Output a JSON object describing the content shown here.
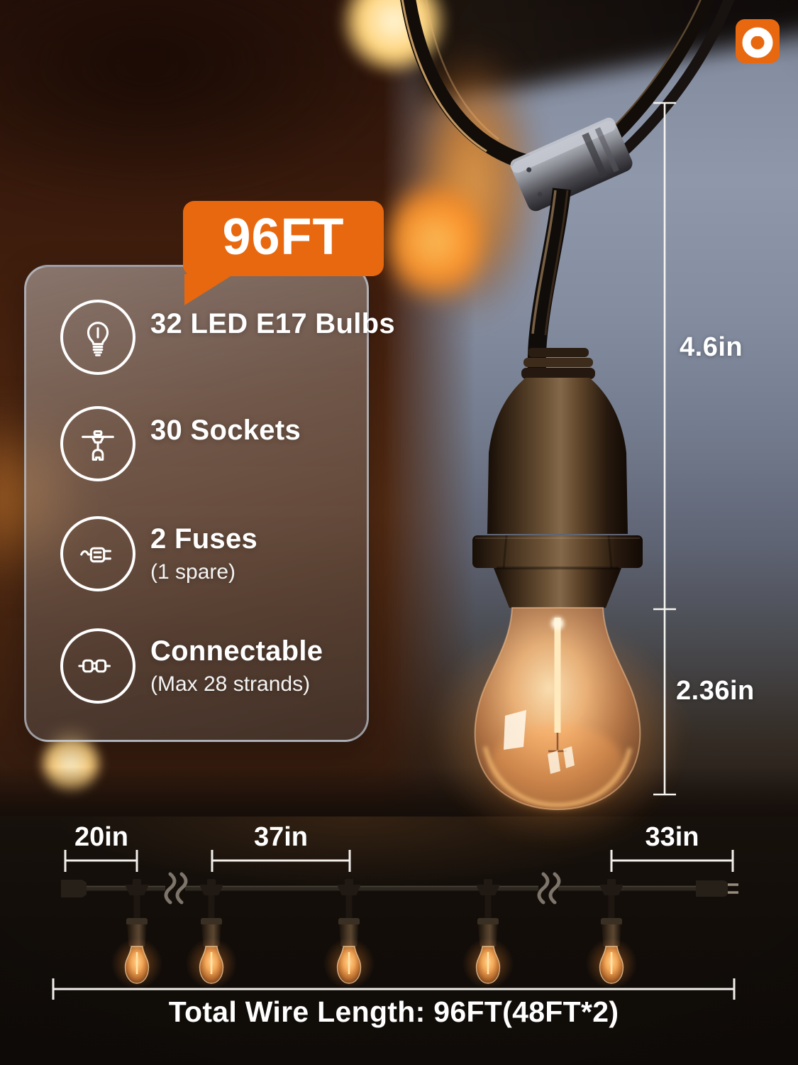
{
  "logo": {
    "name": "brand-logo",
    "color": "#E8680F"
  },
  "callout": {
    "label": "96FT",
    "color": "#E8680F"
  },
  "feature_panel": {
    "items": [
      {
        "icon": "bulb-icon",
        "title": "32 LED E17 Bulbs",
        "subtitle": ""
      },
      {
        "icon": "string-socket-icon",
        "title": "30 Sockets",
        "subtitle": ""
      },
      {
        "icon": "fuse-plug-icon",
        "title": "2 Fuses",
        "subtitle": "(1 spare)"
      },
      {
        "icon": "connectable-plugs-icon",
        "title": "Connectable",
        "subtitle": "(Max 28 strands)"
      }
    ]
  },
  "dimension_labels": {
    "cord_drop": "4.6in",
    "bulb_height": "2.36in"
  },
  "spacing_diagram": {
    "left_spacing": "20in",
    "mid_spacing": "37in",
    "right_spacing": "33in",
    "total": "Total Wire Length: 96FT(48FT*2)"
  },
  "colors": {
    "accent_orange": "#E8680F",
    "text_white": "#FFFFFF",
    "warm_glow": "#FFB452"
  }
}
